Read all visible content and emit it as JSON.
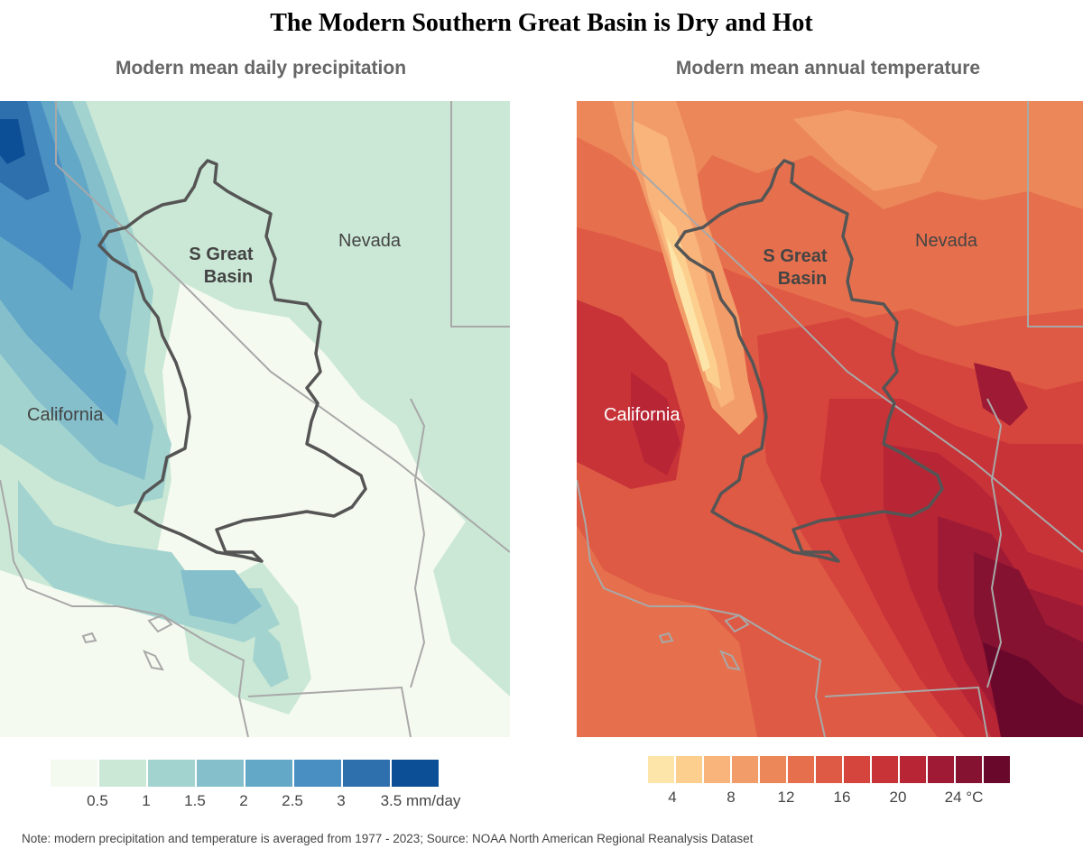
{
  "title": "The Modern Southern Great Basin is Dry and Hot",
  "precip_panel": {
    "title": "Modern mean daily precipitation",
    "labels": {
      "california": "California",
      "nevada": "Nevada",
      "basin_line1": "S Great",
      "basin_line2": "Basin"
    },
    "legend": {
      "colors": [
        "#f5faf0",
        "#cbe8d6",
        "#a2d3cf",
        "#84bfcb",
        "#64a8c8",
        "#4a8fc1",
        "#2e6fad",
        "#0d4f96"
      ],
      "ticks": [
        "0.5",
        "1",
        "1.5",
        "2",
        "2.5",
        "3",
        "3.5 mm/day"
      ]
    }
  },
  "temp_panel": {
    "title": "Modern mean annual temperature",
    "labels": {
      "california": "California",
      "nevada": "Nevada",
      "basin_line1": "S Great",
      "basin_line2": "Basin"
    },
    "legend": {
      "colors": [
        "#fde5a9",
        "#fccf8e",
        "#f9b47b",
        "#f29c69",
        "#ec8759",
        "#e6704d",
        "#de5a44",
        "#d5443d",
        "#c83338",
        "#b82535",
        "#9f1a34",
        "#851231",
        "#6a082c"
      ],
      "ticks": [
        "4",
        "8",
        "12",
        "16",
        "20",
        "24 °C"
      ]
    }
  },
  "note": "Note: modern precipitation and temperature is averaged from 1977 - 2023; Source: NOAA North American Regional Reanalysis Dataset"
}
